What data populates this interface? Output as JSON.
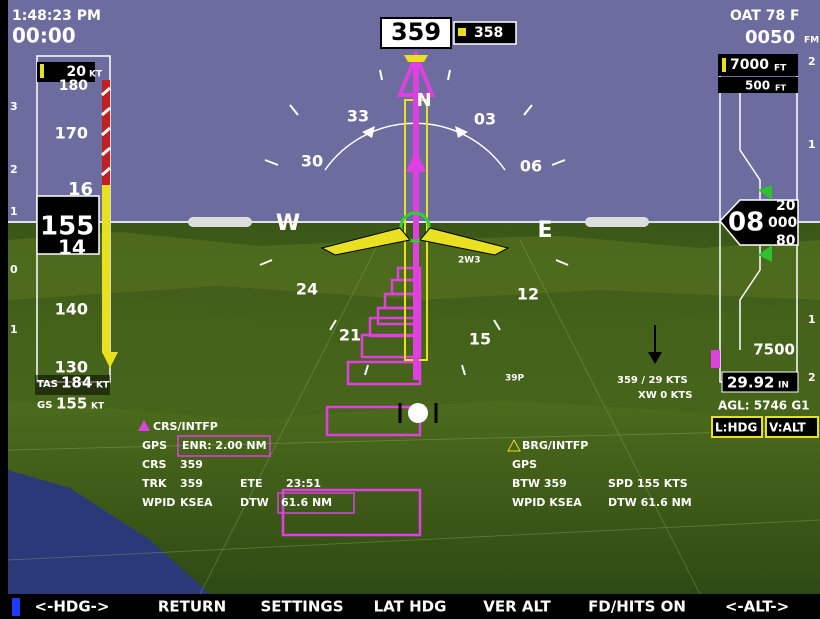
{
  "status": {
    "time": "1:48:23 PM",
    "timer": "00:00",
    "oat": "OAT 78 F",
    "vsi": "0050",
    "vsi_unit": "FM"
  },
  "heading": {
    "current": "359",
    "bug": "358"
  },
  "airspeed": {
    "trend": "20",
    "trend_unit": "KT",
    "scale": [
      "180",
      "170",
      "140",
      "130"
    ],
    "current": "155",
    "roll_up": "16",
    "roll_down": "14",
    "tas_label": "TAS",
    "tas": "184",
    "gs_label": "GS",
    "gs": "155",
    "unit": "KT"
  },
  "altitude": {
    "selected": "7000",
    "selected_unit": "FT",
    "trend": "500",
    "trend_unit": "FT",
    "current_big": "08",
    "current_small": "000",
    "roll_up": "20",
    "roll_down": "80",
    "scale": [
      "7500"
    ],
    "baro": "29.92",
    "baro_unit": "IN",
    "agl": "AGL: 5746 G1"
  },
  "modes": [
    "L:HDG",
    "V:ALT"
  ],
  "vsi_left": [
    "3",
    "2",
    "1",
    "0",
    "1"
  ],
  "vsi_right": [
    "2",
    "1",
    "1",
    "2"
  ],
  "compass": [
    "33",
    "N",
    "03",
    "30",
    "06",
    "W",
    "E",
    "24",
    "12",
    "21",
    "15"
  ],
  "waypoints": [
    "2W3",
    "39P"
  ],
  "wind": {
    "dir_speed": "359 / 29 KTS",
    "crosswind": "XW 0 KTS"
  },
  "nav_left": {
    "title": "CRS/INTFP",
    "source": "GPS",
    "mode": "ENR: 2.00 NM",
    "crs_label": "CRS",
    "crs": "359",
    "trk_label": "TRK",
    "trk": "359",
    "ete_label": "ETE",
    "ete": "23:51",
    "wpid_label": "WPID",
    "wpid": "KSEA",
    "dtw_label": "DTW",
    "dtw": "61.6 NM"
  },
  "nav_right": {
    "title": "BRG/INTFP",
    "source": "GPS",
    "btw": "BTW 359",
    "spd": "SPD 155 KTS",
    "wpid": "WPID KSEA",
    "dtw": "DTW 61.6 NM"
  },
  "softkeys": [
    "<-HDG->",
    "RETURN",
    "SETTINGS",
    "LAT HDG",
    "VER ALT",
    "FD/HITS ON",
    "<-ALT->"
  ]
}
